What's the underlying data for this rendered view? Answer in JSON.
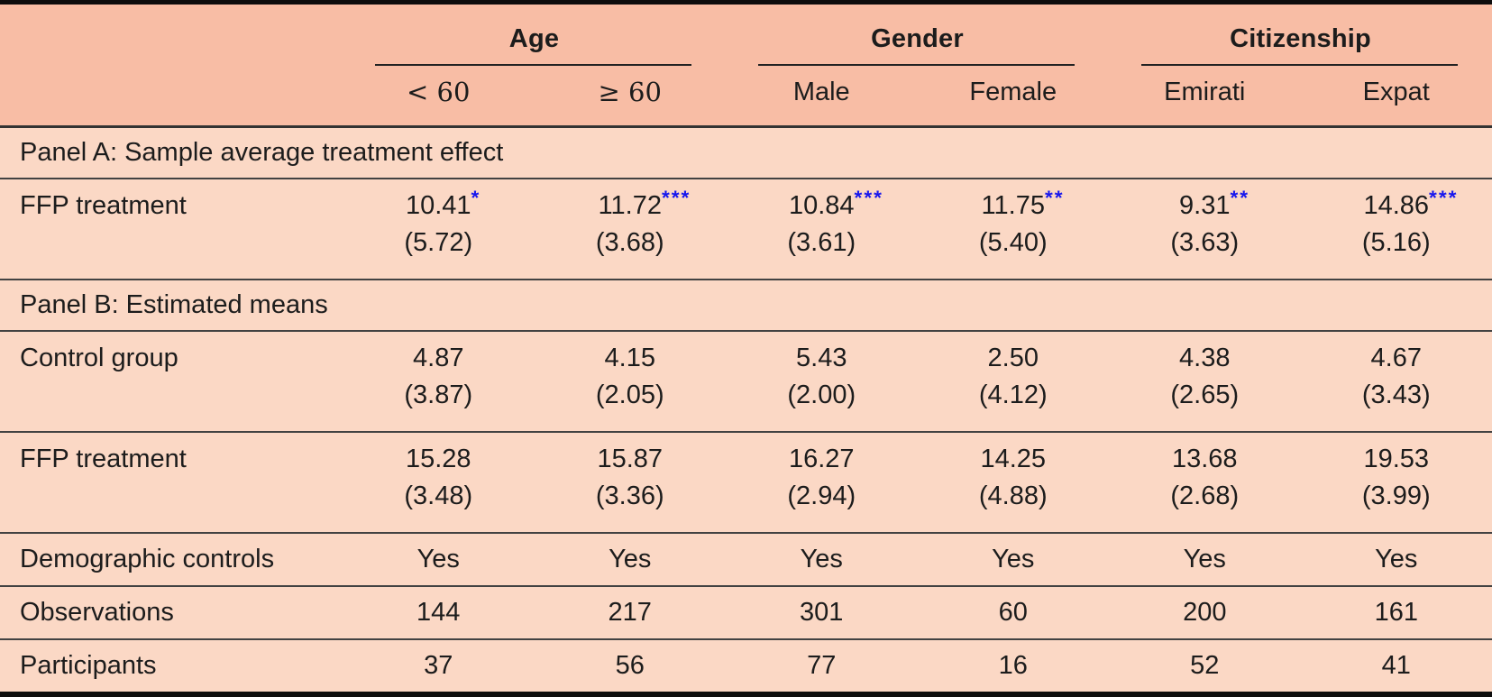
{
  "colors": {
    "header_bg": "#f8bda5",
    "body_bg": "#fbd8c5",
    "star_blue": "#1717ee",
    "rule_dark": "#0d0d0d",
    "rule_thin": "#424242"
  },
  "table": {
    "groups": [
      {
        "label": "Age",
        "sub": [
          "< 60",
          "≥ 60"
        ]
      },
      {
        "label": "Gender",
        "sub": [
          "Male",
          "Female"
        ]
      },
      {
        "label": "Citizenship",
        "sub": [
          "Emirati",
          "Expat"
        ]
      }
    ],
    "rows": [
      {
        "type": "panel",
        "label": "Panel A: Sample average treatment effect"
      },
      {
        "type": "data2",
        "label": "FFP treatment",
        "values": [
          "10.41",
          "11.72",
          "10.84",
          "11.75",
          "9.31",
          "14.86"
        ],
        "stars": [
          "*",
          "***",
          "***",
          "**",
          "**",
          "***"
        ],
        "se": [
          "(5.72)",
          "(3.68)",
          "(3.61)",
          "(5.40)",
          "(3.63)",
          "(5.16)"
        ]
      },
      {
        "type": "panel",
        "label": "Panel B: Estimated means"
      },
      {
        "type": "data2",
        "label": "Control group",
        "values": [
          "4.87",
          "4.15",
          "5.43",
          "2.50",
          "4.38",
          "4.67"
        ],
        "stars": [
          "",
          "",
          "",
          "",
          "",
          ""
        ],
        "se": [
          "(3.87)",
          "(2.05)",
          "(2.00)",
          "(4.12)",
          "(2.65)",
          "(3.43)"
        ]
      },
      {
        "type": "data2",
        "label": "FFP treatment",
        "values": [
          "15.28",
          "15.87",
          "16.27",
          "14.25",
          "13.68",
          "19.53"
        ],
        "stars": [
          "",
          "",
          "",
          "",
          "",
          ""
        ],
        "se": [
          "(3.48)",
          "(3.36)",
          "(2.94)",
          "(4.88)",
          "(2.68)",
          "(3.99)"
        ]
      },
      {
        "type": "data1",
        "label": "Demographic controls",
        "values": [
          "Yes",
          "Yes",
          "Yes",
          "Yes",
          "Yes",
          "Yes"
        ]
      },
      {
        "type": "data1",
        "label": "Observations",
        "values": [
          "144",
          "217",
          "301",
          "60",
          "200",
          "161"
        ]
      },
      {
        "type": "data1",
        "label": "Participants",
        "values": [
          "37",
          "56",
          "77",
          "16",
          "52",
          "41"
        ]
      }
    ]
  }
}
